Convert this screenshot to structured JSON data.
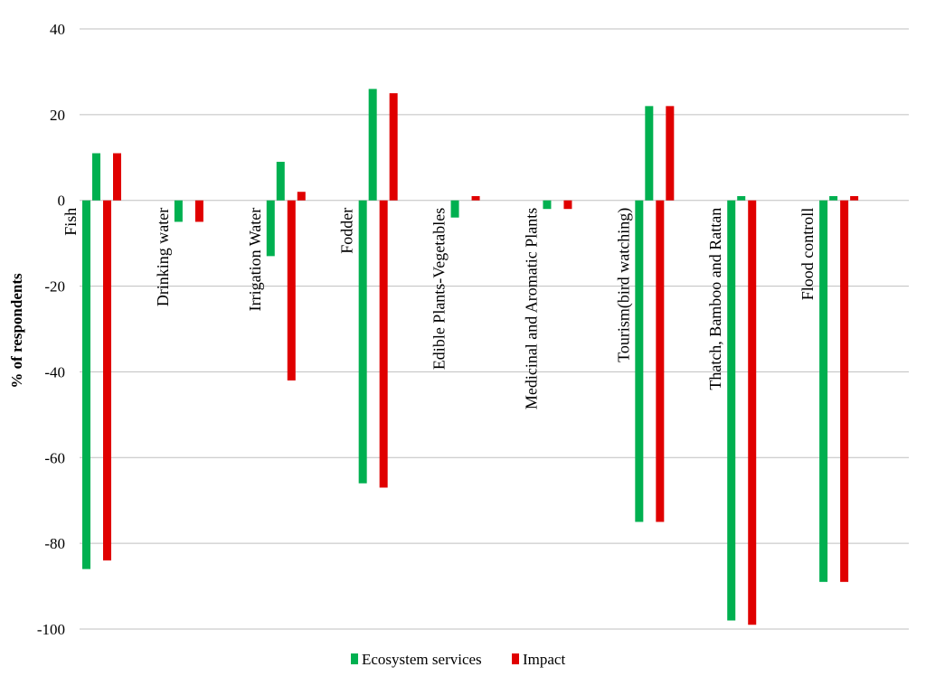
{
  "chart_data": {
    "type": "bar",
    "title": "",
    "xlabel": "",
    "ylabel": "% of respondents",
    "ylim": [
      -100,
      40
    ],
    "yticks": [
      "40",
      "20",
      "0",
      "-20",
      "-40",
      "-60",
      "-80",
      "-100"
    ],
    "grid": true,
    "legend_position": "bottom",
    "categories": [
      "Fish",
      "Drinking water",
      "Irrigation Water",
      "Fodder",
      "Edible Plants-Vegetables",
      "Medicinal and Aromatic Plants",
      "Tourism(bird watching)",
      "Thatch, Bamboo and Rattan",
      "Flood controll"
    ],
    "series": [
      {
        "name": "Ecosystem services",
        "color": "#00B050",
        "groups": [
          [
            -86,
            11
          ],
          [
            -5
          ],
          [
            -13,
            9
          ],
          [
            -66,
            26
          ],
          [
            -4
          ],
          [
            -2
          ],
          [
            -75,
            22
          ],
          [
            -98,
            1
          ],
          [
            -89,
            1
          ]
        ]
      },
      {
        "name": "Impact",
        "color": "#E00000",
        "groups": [
          [
            -84,
            11
          ],
          [
            -5
          ],
          [
            -42,
            2
          ],
          [
            -67,
            25
          ],
          [
            1
          ],
          [
            -2
          ],
          [
            -75,
            22
          ],
          [
            -99
          ],
          [
            -89,
            1
          ]
        ]
      }
    ]
  }
}
